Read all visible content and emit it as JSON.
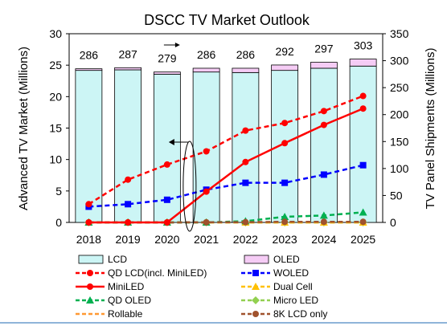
{
  "chart_data": {
    "type": "bar+line",
    "title": "DSCC TV Market Outlook",
    "ylabel_left": "Advanced TV Market (Millions)",
    "ylabel_right": "TV Panel Shipments (Millions)",
    "ylim_left": [
      0,
      30
    ],
    "ylim_right": [
      0,
      350
    ],
    "yticks_left": [
      "0",
      "5",
      "10",
      "15",
      "20",
      "25",
      "30"
    ],
    "yticks_right": [
      "0",
      "50",
      "100",
      "150",
      "200",
      "250",
      "300",
      "350"
    ],
    "categories": [
      "2018",
      "2019",
      "2020",
      "2021",
      "2022",
      "2023",
      "2024",
      "2025"
    ],
    "bar_series": [
      {
        "name": "LCD",
        "color": "#ccf5f5",
        "axis": "right",
        "values": [
          282,
          283,
          275,
          279,
          278,
          282,
          286,
          290
        ]
      },
      {
        "name": "OLED",
        "color": "#f5ccf5",
        "axis": "right",
        "values": [
          3,
          4,
          4,
          7,
          8,
          10,
          11,
          13
        ]
      }
    ],
    "totals": [
      "286",
      "287",
      "279",
      "286",
      "286",
      "292",
      "297",
      "303"
    ],
    "line_series": [
      {
        "name": "QD LCD(incl. MiniLED)",
        "color": "#ff0000",
        "style": "dashed",
        "marker": "circle",
        "axis": "left",
        "values": [
          2.9,
          6.8,
          9.2,
          11.3,
          14.6,
          15.8,
          17.7,
          20.1
        ]
      },
      {
        "name": "WOLED",
        "color": "#0000ff",
        "style": "dashed",
        "marker": "square",
        "axis": "left",
        "values": [
          2.5,
          2.9,
          3.6,
          5.2,
          6.3,
          6.3,
          7.6,
          9.1
        ]
      },
      {
        "name": "MiniLED",
        "color": "#ff0000",
        "style": "solid",
        "marker": "circle",
        "axis": "left",
        "values": [
          0,
          0,
          0,
          4.9,
          9.6,
          12.6,
          15.5,
          18.1
        ]
      },
      {
        "name": "Dual Cell",
        "color": "#ffc000",
        "style": "dashed",
        "marker": "triangle",
        "axis": "left",
        "values": [
          0,
          0,
          0,
          0,
          0,
          0,
          0,
          0
        ]
      },
      {
        "name": "QD OLED",
        "color": "#00b050",
        "style": "dashed",
        "marker": "triangle",
        "axis": "left",
        "values": [
          0,
          0,
          0,
          0,
          0.2,
          0.9,
          1.1,
          1.6
        ]
      },
      {
        "name": "Micro LED",
        "color": "#92d050",
        "style": "dashed",
        "marker": "diamond",
        "axis": "left",
        "values": [
          0,
          0,
          0,
          0,
          0,
          0,
          0,
          0
        ]
      },
      {
        "name": "Rollable",
        "color": "#ff9933",
        "style": "dashed",
        "marker": "none",
        "axis": "left",
        "values": [
          0,
          0,
          0,
          0,
          0,
          0,
          0,
          0
        ]
      },
      {
        "name": "8K LCD only",
        "color": "#a0522d",
        "style": "dashed",
        "marker": "circle",
        "axis": "left",
        "values": [
          0,
          0,
          0,
          0.02,
          0.04,
          0.1,
          0.1,
          0.1
        ]
      }
    ],
    "grid": false,
    "legend_position": "bottom"
  }
}
